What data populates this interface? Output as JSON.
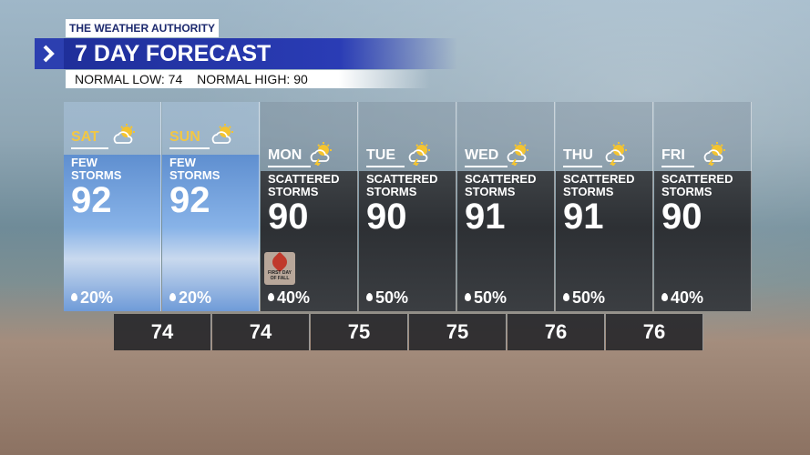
{
  "header": {
    "brand": "THE WEATHER AUTHORITY",
    "title": "7 DAY FORECAST",
    "normals": [
      "NORMAL LOW: 74",
      "NORMAL HIGH: 90"
    ]
  },
  "days": [
    {
      "day": "SAT",
      "condition": [
        "FEW",
        "STORMS"
      ],
      "high": "92",
      "precip": "20%"
    },
    {
      "day": "SUN",
      "condition": [
        "FEW",
        "STORMS"
      ],
      "high": "92",
      "precip": "20%"
    },
    {
      "day": "MON",
      "condition": [
        "SCATTERED",
        "STORMS"
      ],
      "high": "90",
      "precip": "40%",
      "badge": [
        "FIRST DAY",
        "OF FALL"
      ]
    },
    {
      "day": "TUE",
      "condition": [
        "SCATTERED",
        "STORMS"
      ],
      "high": "90",
      "precip": "50%"
    },
    {
      "day": "WED",
      "condition": [
        "SCATTERED",
        "STORMS"
      ],
      "high": "91",
      "precip": "50%"
    },
    {
      "day": "THU",
      "condition": [
        "SCATTERED",
        "STORMS"
      ],
      "high": "91",
      "precip": "50%"
    },
    {
      "day": "FRI",
      "condition": [
        "SCATTERED",
        "STORMS"
      ],
      "high": "90",
      "precip": "40%"
    }
  ],
  "lows": [
    "74",
    "74",
    "75",
    "75",
    "76",
    "76"
  ]
}
